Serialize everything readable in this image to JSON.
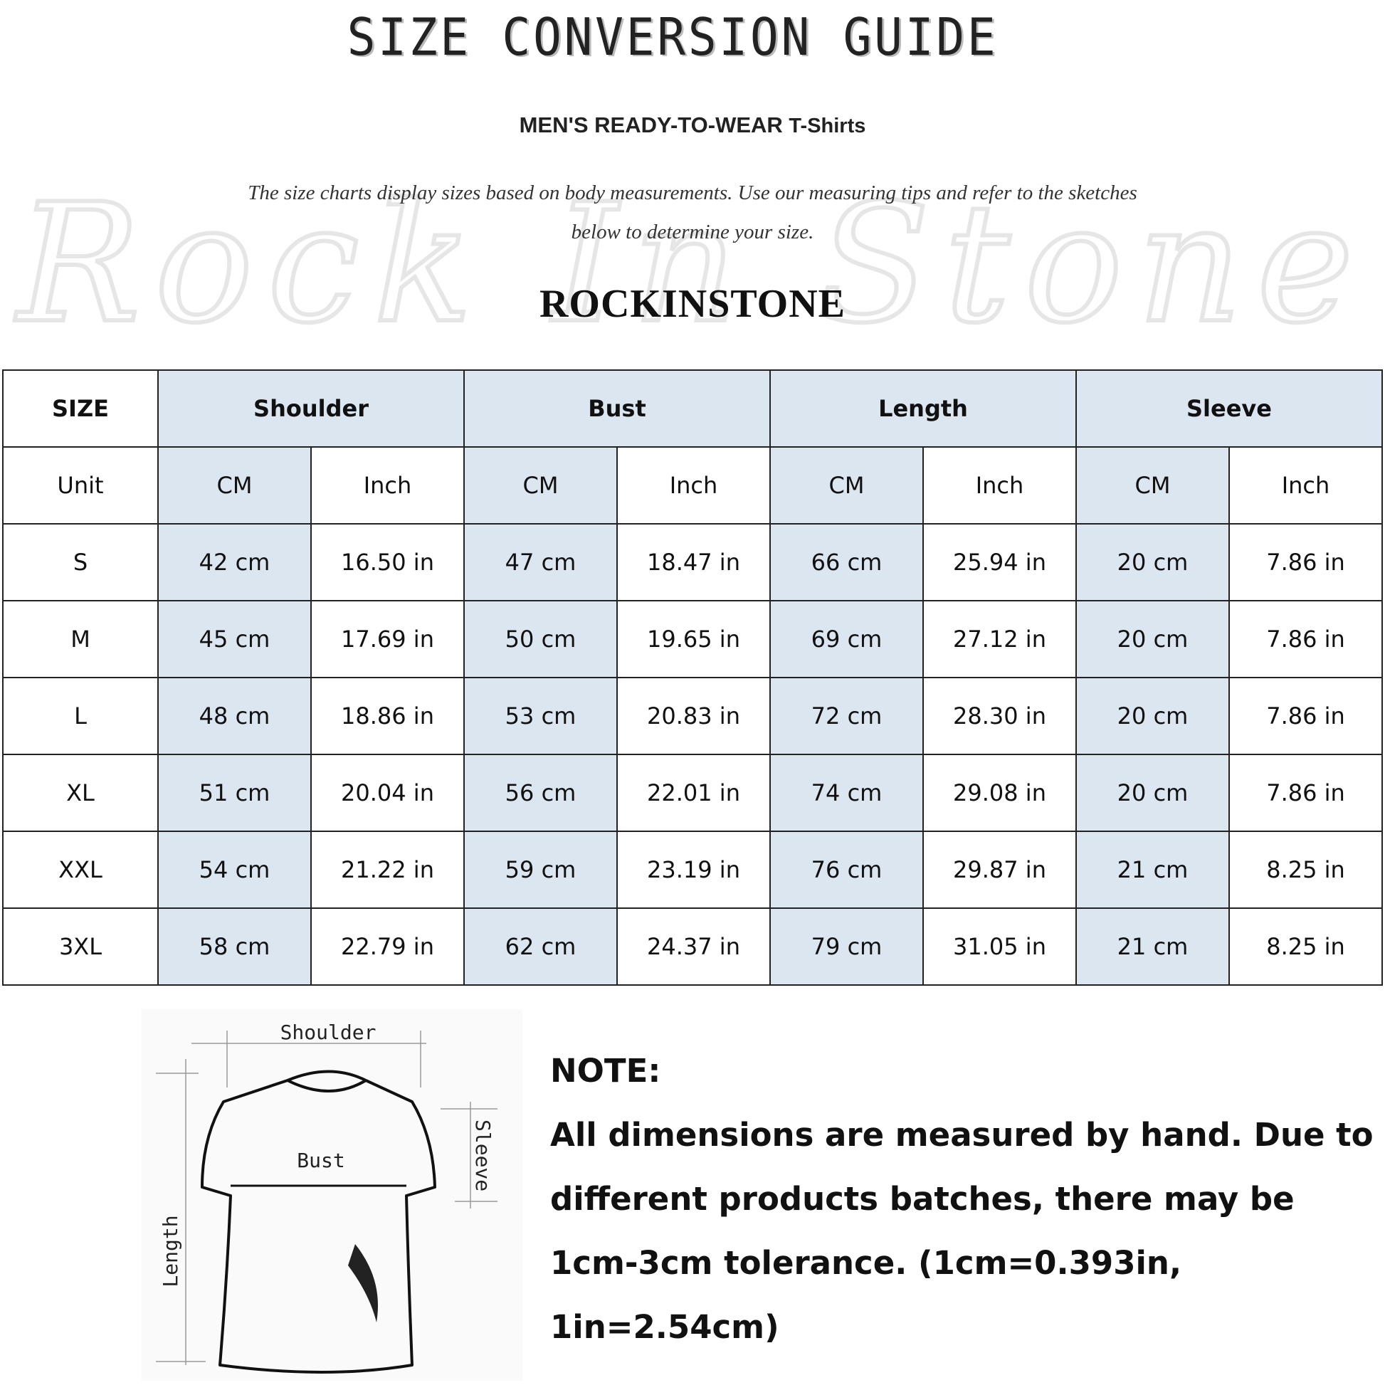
{
  "title": "SIZE CONVERSION GUIDE",
  "subtitle": {
    "main": "MEN'S READY-TO-WEAR",
    "product": "T-Shirts"
  },
  "description": {
    "line1": "The size charts display sizes based on body measurements. Use our measuring tips and refer to the sketches",
    "line2": "below to determine your size."
  },
  "brand": "ROCKINSTONE",
  "watermark": "Rock In Stone",
  "table": {
    "header_label": "SIZE",
    "groups": [
      "Shoulder",
      "Bust",
      "Length",
      "Sleeve"
    ],
    "unit_label": "Unit",
    "units": [
      "CM",
      "Inch",
      "CM",
      "Inch",
      "CM",
      "Inch",
      "CM",
      "Inch"
    ],
    "rows": [
      {
        "size": "S",
        "values": [
          "42 cm",
          "16.50 in",
          "47 cm",
          "18.47 in",
          "66 cm",
          "25.94 in",
          "20 cm",
          "7.86 in"
        ]
      },
      {
        "size": "M",
        "values": [
          "45 cm",
          "17.69 in",
          "50 cm",
          "19.65 in",
          "69 cm",
          "27.12 in",
          "20 cm",
          "7.86 in"
        ]
      },
      {
        "size": "L",
        "values": [
          "48 cm",
          "18.86 in",
          "53 cm",
          "20.83 in",
          "72 cm",
          "28.30 in",
          "20 cm",
          "7.86 in"
        ]
      },
      {
        "size": "XL",
        "values": [
          "51 cm",
          "20.04 in",
          "56 cm",
          "22.01 in",
          "74 cm",
          "29.08 in",
          "20 cm",
          "7.86 in"
        ]
      },
      {
        "size": "XXL",
        "values": [
          "54 cm",
          "21.22 in",
          "59 cm",
          "23.19 in",
          "76 cm",
          "29.87 in",
          "21 cm",
          "8.25 in"
        ]
      },
      {
        "size": "3XL",
        "values": [
          "58 cm",
          "22.79 in",
          "62 cm",
          "24.37 in",
          "79 cm",
          "31.05 in",
          "21 cm",
          "8.25 in"
        ]
      }
    ]
  },
  "sketch": {
    "shoulder": "Shoulder",
    "bust": "Bust",
    "sleeve": "Sleeve",
    "length": "Length"
  },
  "note": {
    "heading": "NOTE:",
    "text": "All dimensions are measured by hand. Due to different products batches, there may be 1cm-3cm tolerance. (1cm=0.393in, 1in=2.54cm)"
  },
  "colors": {
    "header_fill": "#dce6f1",
    "border": "#222222"
  }
}
